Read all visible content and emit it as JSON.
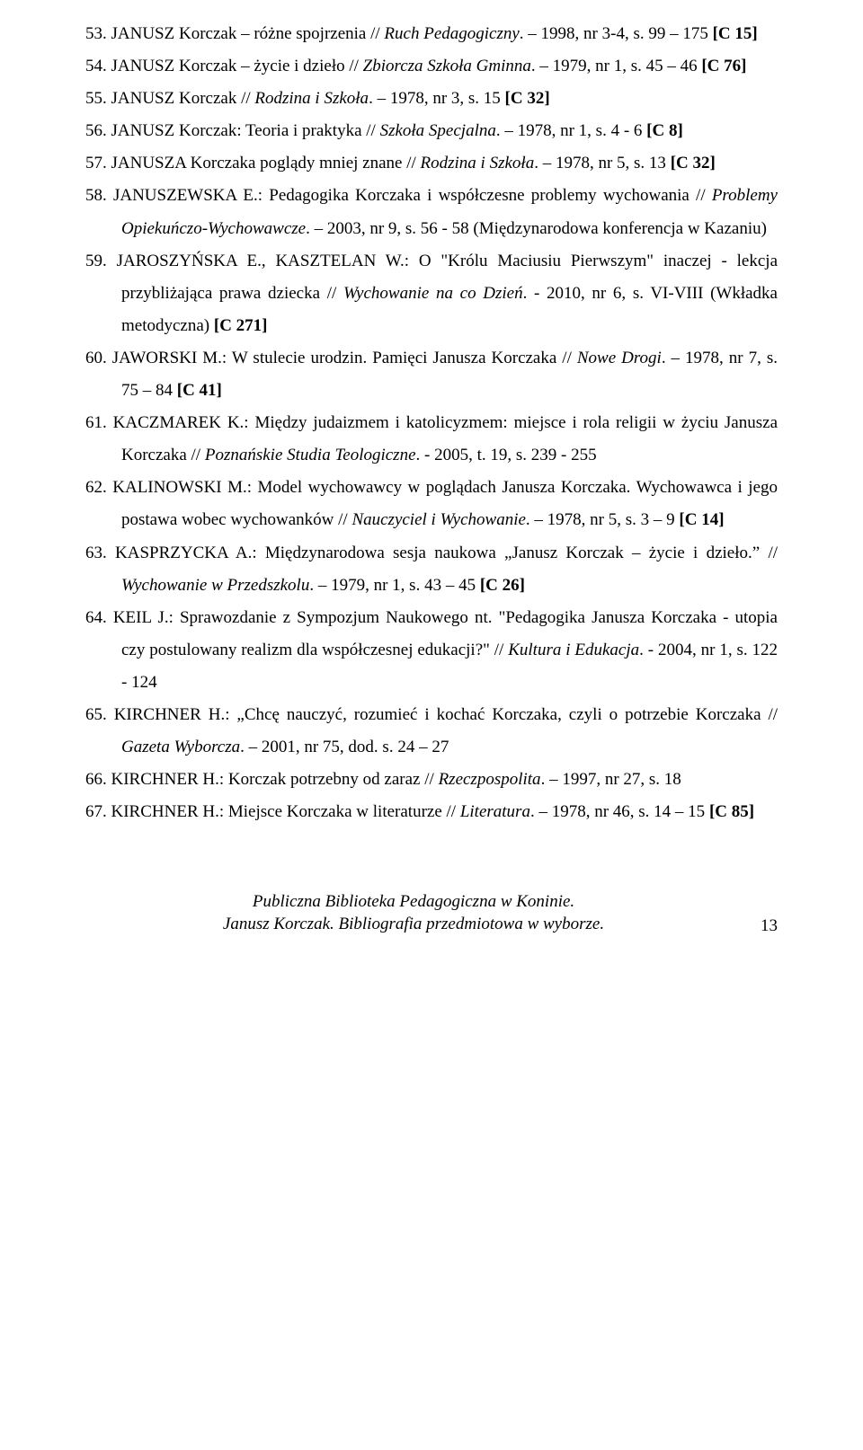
{
  "entries": [
    {
      "n": "e53",
      "prefix": "JANUSZ Korczak – różne spojrzenia // ",
      "ital": "Ruch Pedagogiczny",
      "suffix": ". – 1998, nr 3-4, s. 99 – 175 ",
      "bold": "[C 15]"
    },
    {
      "n": "e54",
      "prefix": "JANUSZ Korczak – życie i dzieło // ",
      "ital": "Zbiorcza Szkoła Gminna",
      "suffix": ". – 1979, nr 1, s. 45 – 46 ",
      "bold": "[C 76]"
    },
    {
      "n": "e55",
      "prefix": "JANUSZ Korczak // ",
      "ital": "Rodzina i Szkoła",
      "suffix": ". – 1978, nr 3, s. 15 ",
      "bold": "[C 32]"
    },
    {
      "n": "e56",
      "prefix": "JANUSZ Korczak: Teoria i praktyka // ",
      "ital": "Szkoła Specjalna",
      "suffix": ". – 1978, nr 1, s. 4 - 6 ",
      "bold": "[C 8]"
    },
    {
      "n": "e57",
      "prefix": "JANUSZA Korczaka poglądy mniej znane // ",
      "ital": "Rodzina i Szkoła",
      "suffix": ". – 1978, nr 5, s. 13 ",
      "bold": "[C 32]"
    },
    {
      "n": "e58",
      "prefix": "JANUSZEWSKA E.: Pedagogika Korczaka i współczesne problemy wychowania // ",
      "ital": "Problemy Opiekuńczo-Wychowawcze",
      "suffix": ". – 2003, nr 9, s. 56 - 58 (Międzynarodowa konferencja w Kazaniu)",
      "bold": ""
    },
    {
      "n": "e59",
      "prefix": "JAROSZYŃSKA E., KASZTELAN W.: O \"Królu Maciusiu Pierwszym\" inaczej - lekcja przybliżająca prawa dziecka // ",
      "ital": "Wychowanie na co Dzień",
      "suffix": ". - 2010, nr 6, s. VI-VIII (Wkładka metodyczna) ",
      "bold": "[C 271]"
    },
    {
      "n": "e60",
      "prefix": "JAWORSKI M.: W stulecie urodzin. Pamięci Janusza Korczaka // ",
      "ital": "Nowe Drogi",
      "suffix": ". – 1978, nr 7, s. 75 – 84 ",
      "bold": "[C 41]"
    },
    {
      "n": "e61",
      "prefix": "KACZMAREK K.: Między judaizmem i katolicyzmem: miejsce i rola religii w życiu Janusza Korczaka // ",
      "ital": "Poznańskie Studia Teologiczne",
      "suffix": ". - 2005, t. 19, s. 239 - 255",
      "bold": ""
    },
    {
      "n": "e62",
      "prefix": "KALINOWSKI M.: Model wychowawcy w poglądach Janusza Korczaka. Wychowawca i jego postawa wobec wychowanków // ",
      "ital": "Nauczyciel i Wychowanie",
      "suffix": ". – 1978, nr 5, s. 3 – 9  ",
      "bold": "[C 14]"
    },
    {
      "n": "e63",
      "prefix": "KASPRZYCKA A.: Międzynarodowa sesja naukowa „Janusz Korczak – życie i dzieło.” // ",
      "ital": "Wychowanie w Przedszkolu",
      "suffix": ". – 1979, nr 1, s. 43 – 45 ",
      "bold": "[C 26]"
    },
    {
      "n": "e64",
      "prefix": "KEIL J.: Sprawozdanie z Sympozjum Naukowego nt. \"Pedagogika Janusza Korczaka - utopia czy postulowany realizm dla współczesnej edukacji?\" // ",
      "ital": "Kultura  i Edukacja",
      "suffix": ". - 2004, nr 1, s. 122 - 124",
      "bold": ""
    },
    {
      "n": "e65",
      "prefix": "KIRCHNER H.: „Chcę nauczyć, rozumieć i kochać Korczaka, czyli o potrzebie Korczaka // ",
      "ital": "Gazeta Wyborcza",
      "suffix": ". – 2001, nr 75, dod. s. 24 – 27",
      "bold": ""
    },
    {
      "n": "e66",
      "prefix": "KIRCHNER H.: Korczak potrzebny od zaraz // ",
      "ital": "Rzeczpospolita",
      "suffix": ". – 1997, nr 27, s. 18",
      "bold": ""
    },
    {
      "n": "e67",
      "prefix": "KIRCHNER H.: Miejsce Korczaka w literaturze // ",
      "ital": "Literatura",
      "suffix": ". – 1978, nr 46, s. 14 – 15 ",
      "bold": "[C 85]"
    }
  ],
  "footer": {
    "line1": "Publiczna Biblioteka Pedagogiczna w Koninie.",
    "line2": "Janusz Korczak. Bibliografia przedmiotowa w wyborze.",
    "pageNumber": "13"
  }
}
